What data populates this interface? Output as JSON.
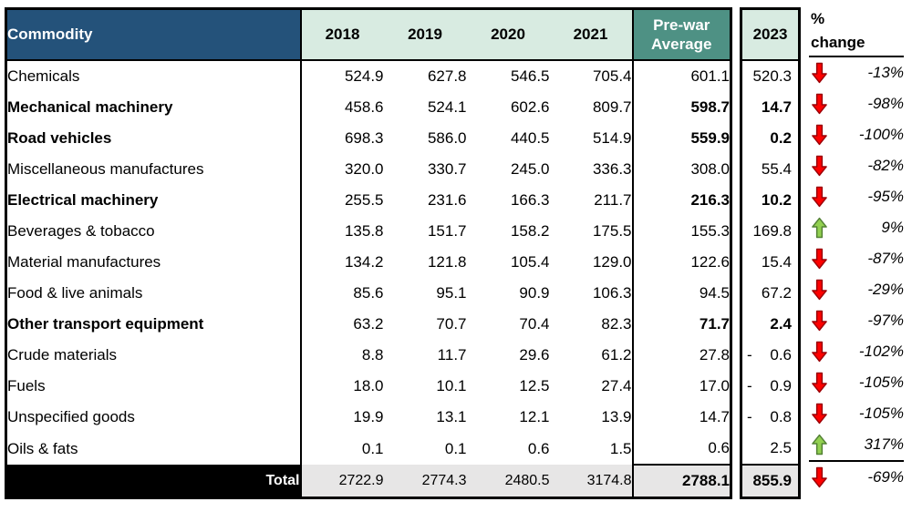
{
  "chart_data": {
    "type": "table",
    "title": "Commodity trade values vs pre-war average",
    "columns": [
      "Commodity",
      "2018",
      "2019",
      "2020",
      "2021",
      "Pre-war Average",
      "2023",
      "% change"
    ],
    "header": {
      "commodity": "Commodity",
      "years": [
        "2018",
        "2019",
        "2020",
        "2021"
      ],
      "prewar_line1": "Pre-war",
      "prewar_line2": "Average",
      "y2023": "2023",
      "pct_line1": "%",
      "pct_line2": "change"
    },
    "rows": [
      {
        "name": "Chemicals",
        "bold": false,
        "values": [
          "524.9",
          "627.8",
          "546.5",
          "705.4"
        ],
        "prewar": "601.1",
        "y2023": "520.3",
        "y2023_negative": false,
        "change_direction": "down",
        "pct_change": "-13%"
      },
      {
        "name": "Mechanical machinery",
        "bold": true,
        "values": [
          "458.6",
          "524.1",
          "602.6",
          "809.7"
        ],
        "prewar": "598.7",
        "y2023": "14.7",
        "y2023_negative": false,
        "change_direction": "down",
        "pct_change": "-98%"
      },
      {
        "name": "Road vehicles",
        "bold": true,
        "values": [
          "698.3",
          "586.0",
          "440.5",
          "514.9"
        ],
        "prewar": "559.9",
        "y2023": "0.2",
        "y2023_negative": false,
        "change_direction": "down",
        "pct_change": "-100%"
      },
      {
        "name": "Miscellaneous manufactures",
        "bold": false,
        "values": [
          "320.0",
          "330.7",
          "245.0",
          "336.3"
        ],
        "prewar": "308.0",
        "y2023": "55.4",
        "y2023_negative": false,
        "change_direction": "down",
        "pct_change": "-82%"
      },
      {
        "name": "Electrical machinery",
        "bold": true,
        "values": [
          "255.5",
          "231.6",
          "166.3",
          "211.7"
        ],
        "prewar": "216.3",
        "y2023": "10.2",
        "y2023_negative": false,
        "change_direction": "down",
        "pct_change": "-95%"
      },
      {
        "name": "Beverages & tobacco",
        "bold": false,
        "values": [
          "135.8",
          "151.7",
          "158.2",
          "175.5"
        ],
        "prewar": "155.3",
        "y2023": "169.8",
        "y2023_negative": false,
        "change_direction": "up",
        "pct_change": "9%"
      },
      {
        "name": "Material manufactures",
        "bold": false,
        "values": [
          "134.2",
          "121.8",
          "105.4",
          "129.0"
        ],
        "prewar": "122.6",
        "y2023": "15.4",
        "y2023_negative": false,
        "change_direction": "down",
        "pct_change": "-87%"
      },
      {
        "name": "Food & live animals",
        "bold": false,
        "values": [
          "85.6",
          "95.1",
          "90.9",
          "106.3"
        ],
        "prewar": "94.5",
        "y2023": "67.2",
        "y2023_negative": false,
        "change_direction": "down",
        "pct_change": "-29%"
      },
      {
        "name": "Other transport equipment",
        "bold": true,
        "values": [
          "63.2",
          "70.7",
          "70.4",
          "82.3"
        ],
        "prewar": "71.7",
        "y2023": "2.4",
        "y2023_negative": false,
        "change_direction": "down",
        "pct_change": "-97%"
      },
      {
        "name": "Crude materials",
        "bold": false,
        "values": [
          "8.8",
          "11.7",
          "29.6",
          "61.2"
        ],
        "prewar": "27.8",
        "y2023": "0.6",
        "y2023_negative": true,
        "change_direction": "down",
        "pct_change": "-102%"
      },
      {
        "name": "Fuels",
        "bold": false,
        "values": [
          "18.0",
          "10.1",
          "12.5",
          "27.4"
        ],
        "prewar": "17.0",
        "y2023": "0.9",
        "y2023_negative": true,
        "change_direction": "down",
        "pct_change": "-105%"
      },
      {
        "name": "Unspecified goods",
        "bold": false,
        "values": [
          "19.9",
          "13.1",
          "12.1",
          "13.9"
        ],
        "prewar": "14.7",
        "y2023": "0.8",
        "y2023_negative": true,
        "change_direction": "down",
        "pct_change": "-105%"
      },
      {
        "name": "Oils & fats",
        "bold": false,
        "values": [
          "0.1",
          "0.1",
          "0.6",
          "1.5"
        ],
        "prewar": "0.6",
        "y2023": "2.5",
        "y2023_negative": false,
        "change_direction": "up",
        "pct_change": "317%"
      }
    ],
    "total": {
      "label": "Total",
      "values": [
        "2722.9",
        "2774.3",
        "2480.5",
        "3174.8"
      ],
      "prewar": "2788.1",
      "y2023": "855.9",
      "y2023_negative": false,
      "change_direction": "down",
      "pct_change": "-69%"
    }
  },
  "colors": {
    "header_blue": "#24527A",
    "header_mint": "#D8EBE1",
    "header_teal": "#4E9184",
    "total_gray": "#E7E6E6",
    "up_arrow_fill": "#92D050",
    "up_arrow_stroke": "#538135",
    "down_arrow_fill": "#FF0000",
    "down_arrow_stroke": "#9C0006",
    "border": "#000000"
  }
}
